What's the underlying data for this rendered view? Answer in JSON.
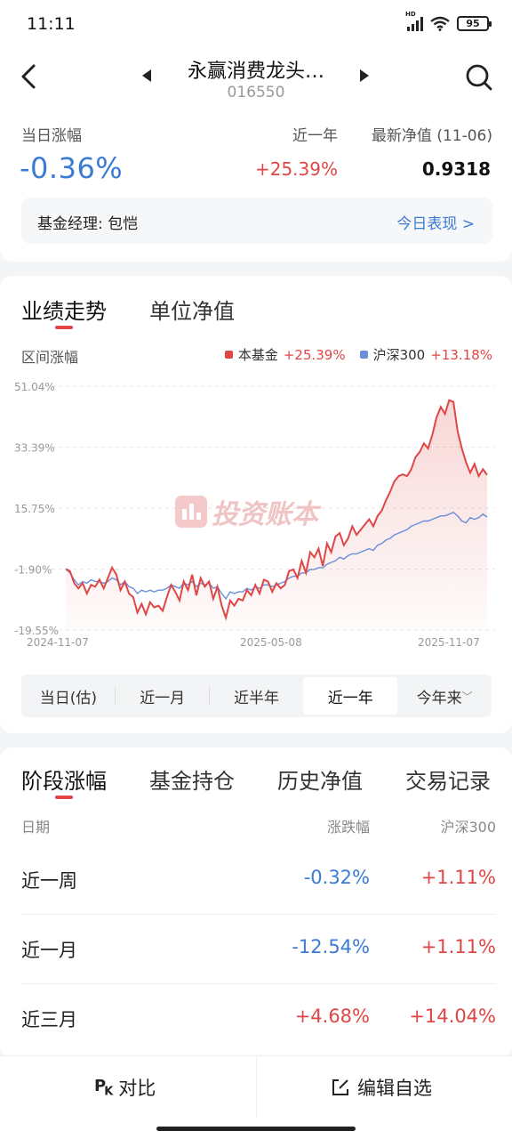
{
  "status": {
    "time": "11:11",
    "signal": "HD",
    "battery": "95"
  },
  "header": {
    "title": "永赢消费龙头…",
    "code": "016550"
  },
  "summary": {
    "day_label": "当日涨幅",
    "day_value": "-0.36%",
    "year_label": "近一年",
    "year_value": "+25.39%",
    "nav_label": "最新净值 (11-06)",
    "nav_value": "0.9318",
    "manager_text": "基金经理: 包恺",
    "today_link": "今日表现 >"
  },
  "chart_tabs": {
    "active": "业绩走势",
    "other": "单位净值"
  },
  "chart_header": {
    "range_label": "区间涨幅",
    "legend_fund_name": "本基金",
    "legend_fund_value": "+25.39%",
    "legend_index_name": "沪深300",
    "legend_index_value": "+13.18%"
  },
  "colors": {
    "fund": "#e04646",
    "index": "#6a8fd8",
    "up": "#e04646",
    "down": "#3b7bd4"
  },
  "chart_data": {
    "type": "line",
    "y_ticks": [
      "51.04%",
      "33.39%",
      "15.75%",
      "-1.90%",
      "-19.55%"
    ],
    "ylim": [
      -19.55,
      51.04
    ],
    "x_ticks": [
      "2024-11-07",
      "2025-05-08",
      "2025-11-07"
    ],
    "watermark": "投资账本",
    "series": [
      {
        "name": "本基金",
        "values": [
          -1.9,
          -2.5,
          -6.0,
          -7.5,
          -6.0,
          -9.0,
          -6.5,
          -7.0,
          -5.0,
          -7.5,
          -4.5,
          -1.5,
          -3.5,
          -8.0,
          -5.5,
          -9.0,
          -10.0,
          -14.5,
          -12.0,
          -15.0,
          -11.5,
          -13.0,
          -12.5,
          -14.0,
          -10.0,
          -6.5,
          -8.5,
          -11.0,
          -5.5,
          -8.0,
          -3.5,
          -9.5,
          -4.5,
          -7.0,
          -5.5,
          -10.5,
          -7.0,
          -12.5,
          -16.0,
          -11.0,
          -12.5,
          -10.5,
          -11.0,
          -8.0,
          -9.5,
          -6.5,
          -9.0,
          -5.0,
          -5.5,
          -8.5,
          -6.0,
          -7.5,
          -6.5,
          -2.5,
          -2.0,
          -4.5,
          0.5,
          -3.0,
          3.0,
          1.5,
          4.0,
          -1.0,
          5.5,
          3.0,
          7.5,
          8.5,
          5.0,
          7.0,
          10.5,
          8.0,
          9.5,
          11.0,
          12.5,
          10.5,
          13.5,
          15.0,
          18.0,
          20.5,
          23.5,
          25.0,
          25.5,
          25.0,
          27.0,
          30.5,
          32.0,
          34.5,
          33.0,
          37.0,
          42.0,
          45.0,
          43.0,
          47.0,
          46.5,
          38.0,
          33.0,
          29.0,
          26.0,
          28.5,
          25.0,
          27.0,
          25.39
        ]
      },
      {
        "name": "沪深300",
        "values": [
          -1.9,
          -3.0,
          -5.0,
          -6.5,
          -5.5,
          -6.0,
          -5.0,
          -5.5,
          -5.5,
          -6.0,
          -5.5,
          -4.5,
          -5.0,
          -6.5,
          -5.5,
          -7.0,
          -7.5,
          -9.0,
          -8.0,
          -8.5,
          -8.0,
          -8.5,
          -8.0,
          -8.0,
          -7.5,
          -6.5,
          -7.0,
          -7.5,
          -6.0,
          -6.5,
          -5.5,
          -7.0,
          -6.0,
          -6.5,
          -6.0,
          -7.5,
          -7.0,
          -9.0,
          -10.5,
          -8.5,
          -9.0,
          -8.5,
          -8.5,
          -7.5,
          -8.0,
          -7.0,
          -7.5,
          -6.5,
          -6.5,
          -7.0,
          -6.5,
          -6.0,
          -5.5,
          -4.5,
          -4.0,
          -4.0,
          -3.0,
          -3.0,
          -2.0,
          -2.0,
          -1.5,
          -1.5,
          -0.5,
          0.0,
          0.5,
          1.5,
          1.0,
          2.0,
          2.5,
          2.5,
          3.0,
          3.5,
          4.0,
          3.5,
          5.0,
          5.5,
          6.5,
          7.0,
          8.0,
          8.5,
          9.0,
          9.5,
          10.5,
          11.0,
          11.5,
          12.0,
          12.0,
          12.5,
          13.0,
          13.5,
          13.5,
          14.0,
          14.5,
          13.5,
          12.0,
          11.5,
          13.0,
          12.5,
          13.0,
          14.0,
          13.18
        ]
      }
    ]
  },
  "periods": [
    "当日(估)",
    "近一月",
    "近半年",
    "近一年",
    "今年来"
  ],
  "selected_period": "近一年",
  "list_tabs": [
    "阶段涨幅",
    "基金持仓",
    "历史净值",
    "交易记录"
  ],
  "list_header": {
    "date": "日期",
    "change": "涨跌幅",
    "index": "沪深300"
  },
  "rows": [
    {
      "name": "近一周",
      "change": "-0.32%",
      "index": "+1.11%"
    },
    {
      "name": "近一月",
      "change": "-12.54%",
      "index": "+1.11%"
    },
    {
      "name": "近三月",
      "change": "+4.68%",
      "index": "+14.04%"
    }
  ],
  "bottom": {
    "compare": "对比",
    "edit": "编辑自选"
  }
}
